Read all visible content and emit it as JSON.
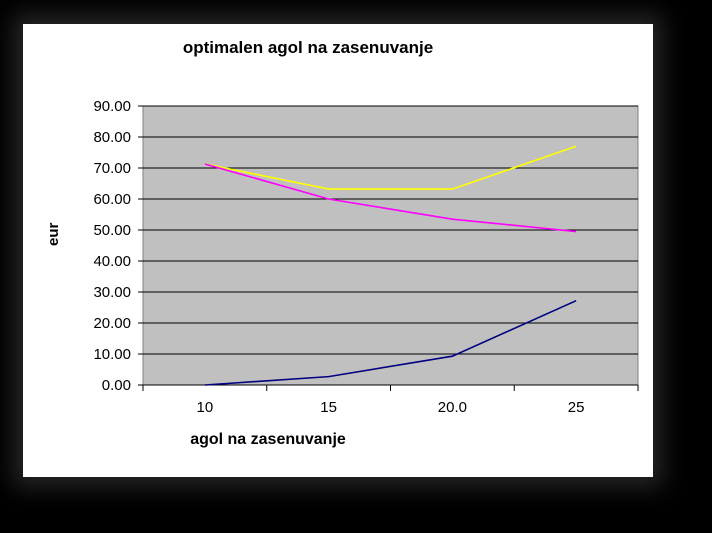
{
  "chart_data": {
    "type": "line",
    "title": "optimalen agol na zasenuvanje",
    "xlabel": "agol na zasenuvanje",
    "ylabel": "eur",
    "categories": [
      "10",
      "15",
      "20.0",
      "25"
    ],
    "ylim": [
      0,
      90
    ],
    "yticks": [
      "0.00",
      "10.00",
      "20.00",
      "30.00",
      "40.00",
      "50.00",
      "60.00",
      "70.00",
      "80.00",
      "90.00"
    ],
    "grid": true,
    "plot_background": "#c0c0c0",
    "series": [
      {
        "color": "#ffff00",
        "values": [
          71.3,
          63.2,
          63.2,
          77.0
        ]
      },
      {
        "color": "#ff00ff",
        "values": [
          71.3,
          60.0,
          53.5,
          49.5
        ]
      },
      {
        "color": "#000080",
        "values": [
          0.0,
          2.7,
          9.3,
          27.2
        ]
      }
    ]
  }
}
